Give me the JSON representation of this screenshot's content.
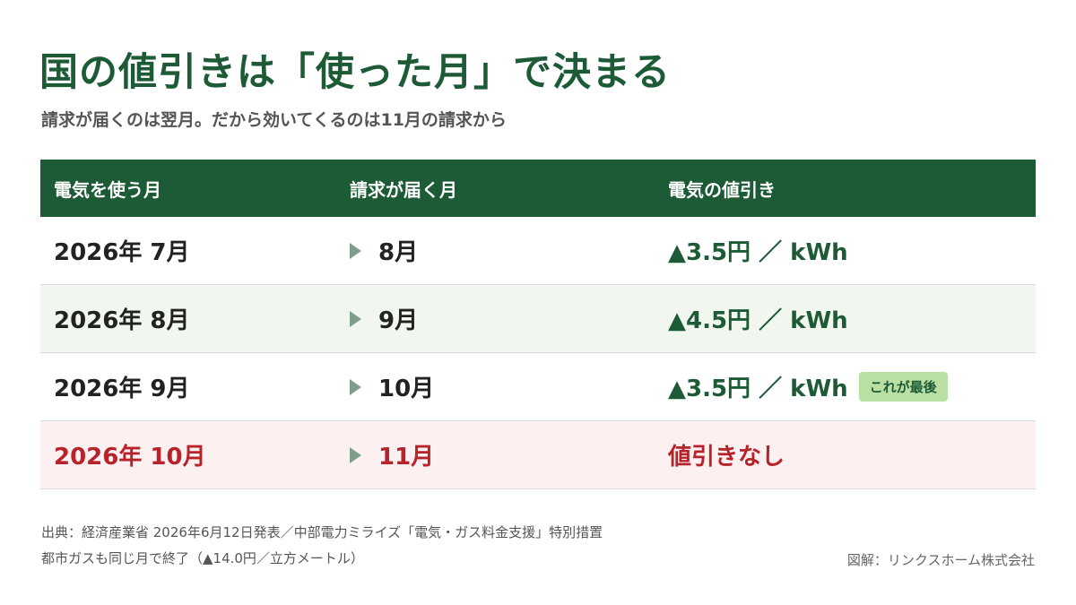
{
  "header": {
    "title": "国の値引きは「使った月」で決まる",
    "subtitle": "請求が届くのは翌月。だから効いてくるのは11月の請求から"
  },
  "table": {
    "columns": [
      "電気を使う月",
      "請求が届く月",
      "電気の値引き"
    ],
    "rows": [
      {
        "use_month": "2026年 7月",
        "bill_month": "8月",
        "discount": "▲3.5円 ／ kWh",
        "badge": ""
      },
      {
        "use_month": "2026年 8月",
        "bill_month": "9月",
        "discount": "▲4.5円 ／ kWh",
        "badge": ""
      },
      {
        "use_month": "2026年 9月",
        "bill_month": "10月",
        "discount": "▲3.5円 ／ kWh",
        "badge": "これが最後"
      },
      {
        "use_month": "2026年 10月",
        "bill_month": "11月",
        "discount": "値引きなし",
        "badge": ""
      }
    ]
  },
  "footer": {
    "source": "出典：経済産業省 2026年6月12日発表／中部電力ミライズ「電気・ガス料金支援」特別措置",
    "note": "都市ガスも同じ月で終了（▲14.0円／立方メートル）",
    "credit": "図解：リンクスホーム株式会社"
  },
  "colors": {
    "brand_green": "#1d5a36",
    "alt_row": "#f1f7ee",
    "end_row": "#fdf0f0",
    "end_text": "#b7232a",
    "badge": "#b9dfa2"
  }
}
